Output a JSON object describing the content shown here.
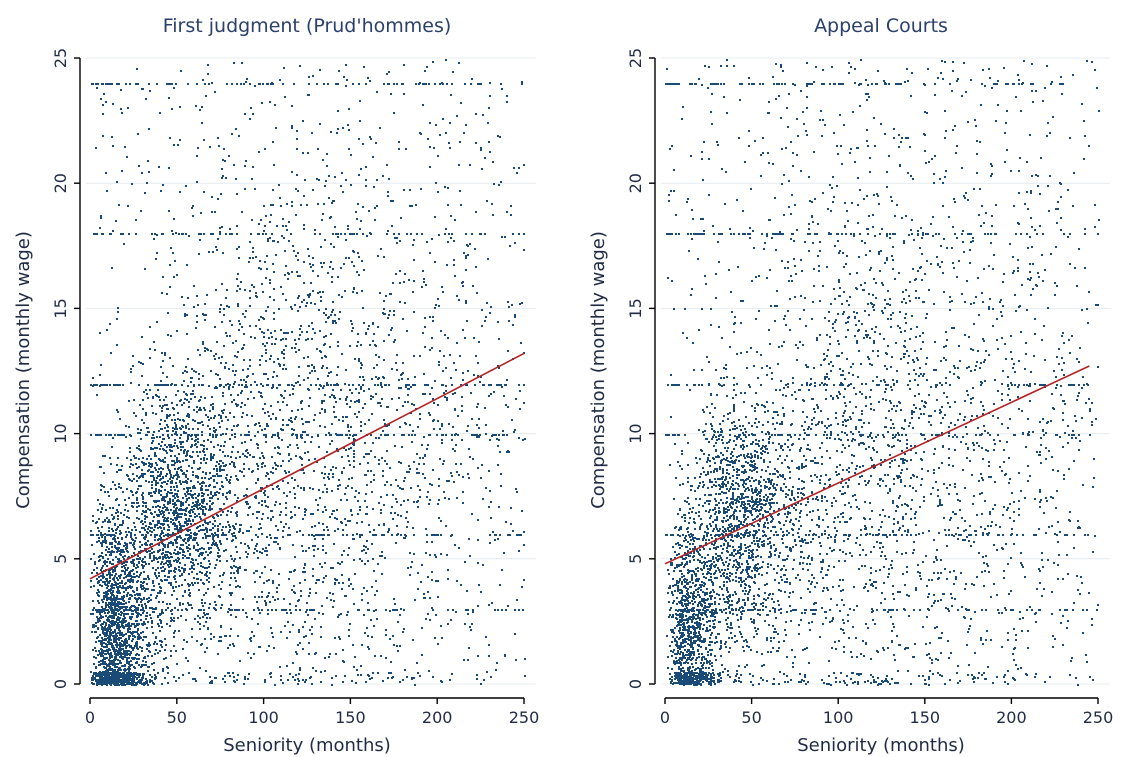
{
  "chart_data": [
    {
      "type": "scatter",
      "title": "First judgment (Prud'hommes)",
      "xlabel": "Seniority (months)",
      "ylabel": "Compensation (monthly wage)",
      "xlim": [
        0,
        250
      ],
      "ylim": [
        0,
        25
      ],
      "xticks": [
        "0",
        "50",
        "100",
        "150",
        "200",
        "250"
      ],
      "yticks": [
        "0",
        "5",
        "10",
        "15",
        "20",
        "25"
      ],
      "grid": "horizontal",
      "point_color": "#1a4a78",
      "fit_line": {
        "color": "#b22222",
        "x": [
          0,
          250
        ],
        "y": [
          4.2,
          13.2
        ]
      },
      "density_clusters": [
        {
          "x_center": 10,
          "y_center": 2,
          "x_spread": 12,
          "y_spread": 2.5,
          "weight": 0.3
        },
        {
          "x_center": 40,
          "y_center": 7,
          "x_spread": 25,
          "y_spread": 2.5,
          "weight": 0.25
        },
        {
          "x_center": 100,
          "y_center": 10,
          "x_spread": 70,
          "y_spread": 6,
          "weight": 0.3
        },
        {
          "x_center": 125,
          "y_center": 14,
          "x_spread": 125,
          "y_spread": 11,
          "weight": 0.15
        }
      ],
      "horizontal_bands": [
        6,
        12,
        18,
        10,
        3,
        24
      ],
      "point_count": 6500
    },
    {
      "type": "scatter",
      "title": "Appeal Courts",
      "xlabel": "Seniority (months)",
      "ylabel": "Compensation (monthly wage)",
      "xlim": [
        0,
        250
      ],
      "ylim": [
        0,
        25
      ],
      "xticks": [
        "0",
        "50",
        "100",
        "150",
        "200",
        "250"
      ],
      "yticks": [
        "0",
        "5",
        "10",
        "15",
        "20",
        "25"
      ],
      "grid": "horizontal",
      "point_color": "#1a4a78",
      "fit_line": {
        "color": "#b22222",
        "x": [
          0,
          245
        ],
        "y": [
          4.8,
          12.7
        ]
      },
      "density_clusters": [
        {
          "x_center": 10,
          "y_center": 2,
          "x_spread": 10,
          "y_spread": 2.5,
          "weight": 0.22
        },
        {
          "x_center": 35,
          "y_center": 6.5,
          "x_spread": 22,
          "y_spread": 2.6,
          "weight": 0.26
        },
        {
          "x_center": 100,
          "y_center": 9,
          "x_spread": 70,
          "y_spread": 6,
          "weight": 0.32
        },
        {
          "x_center": 125,
          "y_center": 14,
          "x_spread": 125,
          "y_spread": 11,
          "weight": 0.2
        }
      ],
      "horizontal_bands": [
        6,
        12,
        18,
        24,
        10,
        3
      ],
      "point_count": 5500
    }
  ]
}
